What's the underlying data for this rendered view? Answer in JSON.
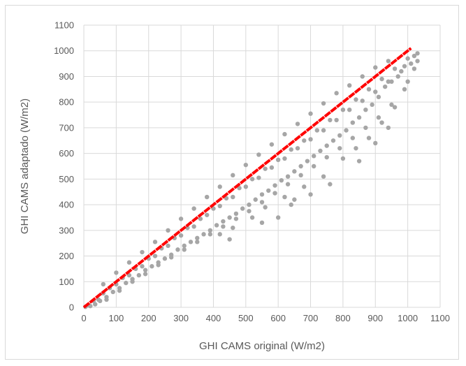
{
  "chart_data": {
    "type": "scatter",
    "xlabel": "GHI CAMS original (W/m2)",
    "ylabel": "GHI CAMS adaptado (W/m2)",
    "xlim": [
      0,
      1100
    ],
    "ylim": [
      0,
      1100
    ],
    "x_ticks": [
      0,
      100,
      200,
      300,
      400,
      500,
      600,
      700,
      800,
      900,
      1000,
      1100
    ],
    "y_ticks": [
      0,
      100,
      200,
      300,
      400,
      500,
      600,
      700,
      800,
      900,
      1000,
      1100
    ],
    "x_tick_labels": [
      "0",
      "100",
      "200",
      "300",
      "400",
      "500",
      "600",
      "700",
      "800",
      "900",
      "1000",
      "1100"
    ],
    "y_tick_labels": [
      "0",
      "100",
      "200",
      "300",
      "400",
      "500",
      "600",
      "700",
      "800",
      "900",
      "1000",
      "1100"
    ],
    "grid": true,
    "legend": "none",
    "series": [
      {
        "kind": "scatter",
        "color": "#a6a6a6",
        "points": [
          [
            5,
            2
          ],
          [
            15,
            8
          ],
          [
            30,
            25
          ],
          [
            45,
            30
          ],
          [
            60,
            55
          ],
          [
            80,
            75
          ],
          [
            100,
            90
          ],
          [
            120,
            115
          ],
          [
            140,
            125
          ],
          [
            160,
            150
          ],
          [
            180,
            160
          ],
          [
            200,
            190
          ],
          [
            220,
            200
          ],
          [
            240,
            230
          ],
          [
            260,
            240
          ],
          [
            280,
            270
          ],
          [
            300,
            280
          ],
          [
            320,
            310
          ],
          [
            340,
            315
          ],
          [
            360,
            345
          ],
          [
            380,
            360
          ],
          [
            400,
            385
          ],
          [
            420,
            395
          ],
          [
            440,
            425
          ],
          [
            460,
            430
          ],
          [
            480,
            465
          ],
          [
            500,
            470
          ],
          [
            520,
            500
          ],
          [
            540,
            505
          ],
          [
            560,
            540
          ],
          [
            580,
            545
          ],
          [
            600,
            575
          ],
          [
            620,
            580
          ],
          [
            640,
            615
          ],
          [
            660,
            620
          ],
          [
            680,
            650
          ],
          [
            700,
            655
          ],
          [
            720,
            690
          ],
          [
            740,
            690
          ],
          [
            760,
            730
          ],
          [
            780,
            730
          ],
          [
            800,
            770
          ],
          [
            820,
            770
          ],
          [
            840,
            810
          ],
          [
            860,
            805
          ],
          [
            880,
            850
          ],
          [
            900,
            840
          ],
          [
            920,
            890
          ],
          [
            940,
            880
          ],
          [
            960,
            930
          ],
          [
            980,
            920
          ],
          [
            1000,
            970
          ],
          [
            1020,
            980
          ],
          [
            1030,
            990
          ],
          [
            1030,
            960
          ],
          [
            1010,
            950
          ],
          [
            990,
            940
          ],
          [
            970,
            900
          ],
          [
            950,
            880
          ],
          [
            930,
            860
          ],
          [
            910,
            820
          ],
          [
            890,
            790
          ],
          [
            870,
            770
          ],
          [
            850,
            740
          ],
          [
            830,
            720
          ],
          [
            810,
            690
          ],
          [
            790,
            670
          ],
          [
            770,
            650
          ],
          [
            750,
            630
          ],
          [
            730,
            610
          ],
          [
            710,
            590
          ],
          [
            690,
            570
          ],
          [
            670,
            550
          ],
          [
            650,
            530
          ],
          [
            630,
            510
          ],
          [
            610,
            495
          ],
          [
            590,
            475
          ],
          [
            570,
            455
          ],
          [
            550,
            440
          ],
          [
            530,
            420
          ],
          [
            510,
            400
          ],
          [
            490,
            385
          ],
          [
            470,
            365
          ],
          [
            450,
            350
          ],
          [
            430,
            335
          ],
          [
            410,
            320
          ],
          [
            390,
            300
          ],
          [
            370,
            285
          ],
          [
            350,
            270
          ],
          [
            330,
            255
          ],
          [
            310,
            240
          ],
          [
            290,
            225
          ],
          [
            270,
            205
          ],
          [
            250,
            190
          ],
          [
            230,
            175
          ],
          [
            210,
            160
          ],
          [
            190,
            145
          ],
          [
            170,
            125
          ],
          [
            150,
            110
          ],
          [
            130,
            95
          ],
          [
            110,
            75
          ],
          [
            90,
            60
          ],
          [
            70,
            40
          ],
          [
            50,
            25
          ],
          [
            35,
            12
          ],
          [
            20,
            5
          ],
          [
            60,
            90
          ],
          [
            100,
            135
          ],
          [
            140,
            175
          ],
          [
            180,
            215
          ],
          [
            220,
            255
          ],
          [
            260,
            300
          ],
          [
            300,
            345
          ],
          [
            340,
            385
          ],
          [
            380,
            430
          ],
          [
            420,
            470
          ],
          [
            460,
            515
          ],
          [
            500,
            555
          ],
          [
            540,
            595
          ],
          [
            580,
            635
          ],
          [
            620,
            675
          ],
          [
            660,
            715
          ],
          [
            700,
            755
          ],
          [
            740,
            795
          ],
          [
            780,
            835
          ],
          [
            820,
            865
          ],
          [
            860,
            900
          ],
          [
            900,
            935
          ],
          [
            940,
            960
          ],
          [
            70,
            30
          ],
          [
            110,
            65
          ],
          [
            150,
            100
          ],
          [
            190,
            130
          ],
          [
            230,
            165
          ],
          [
            270,
            195
          ],
          [
            310,
            225
          ],
          [
            350,
            255
          ],
          [
            390,
            285
          ],
          [
            430,
            315
          ],
          [
            470,
            345
          ],
          [
            510,
            375
          ],
          [
            550,
            410
          ],
          [
            590,
            445
          ],
          [
            630,
            480
          ],
          [
            670,
            515
          ],
          [
            710,
            550
          ],
          [
            750,
            585
          ],
          [
            790,
            620
          ],
          [
            830,
            660
          ],
          [
            870,
            700
          ],
          [
            910,
            740
          ],
          [
            950,
            790
          ],
          [
            990,
            850
          ],
          [
            420,
            285
          ],
          [
            460,
            310
          ],
          [
            520,
            350
          ],
          [
            560,
            390
          ],
          [
            620,
            430
          ],
          [
            680,
            470
          ],
          [
            740,
            510
          ],
          [
            800,
            580
          ],
          [
            840,
            620
          ],
          [
            880,
            660
          ],
          [
            920,
            720
          ],
          [
            960,
            780
          ],
          [
            1000,
            880
          ],
          [
            1020,
            930
          ],
          [
            450,
            265
          ],
          [
            550,
            330
          ],
          [
            640,
            400
          ],
          [
            700,
            440
          ],
          [
            760,
            480
          ],
          [
            850,
            570
          ],
          [
            900,
            640
          ],
          [
            940,
            700
          ],
          [
            600,
            350
          ],
          [
            650,
            420
          ]
        ]
      },
      {
        "kind": "line",
        "color": "#ff0000",
        "points": [
          [
            0,
            0
          ],
          [
            1010,
            1010
          ]
        ]
      }
    ]
  }
}
